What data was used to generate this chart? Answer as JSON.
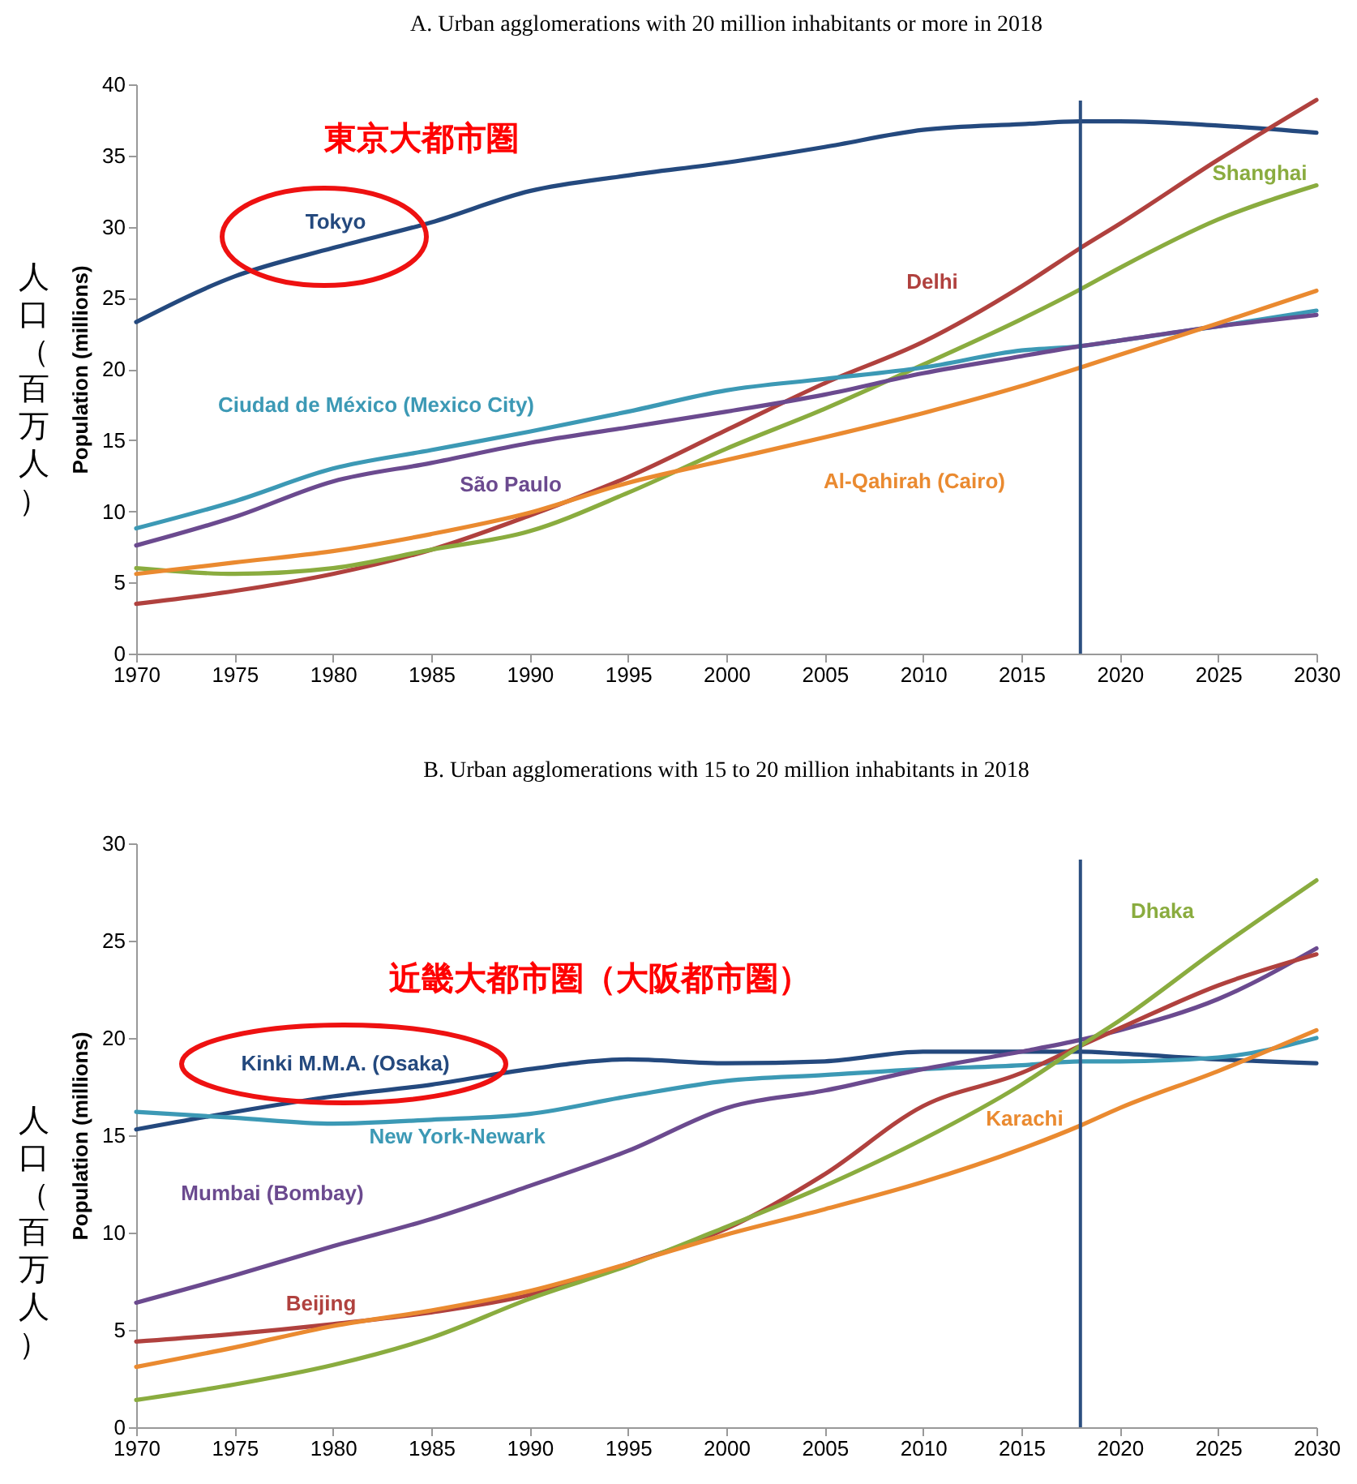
{
  "chart_data": [
    {
      "type": "line",
      "title": "A. Urban agglomerations with 20 million inhabitants or more in 2018",
      "ylabel": "Population (millions)",
      "annotations": [
        "東京大都市圏",
        "人口（百万人）"
      ],
      "x": [
        1970,
        1975,
        1980,
        1985,
        1990,
        1995,
        2000,
        2005,
        2010,
        2015,
        2018,
        2020,
        2025,
        2030
      ],
      "series": [
        {
          "name": "Tokyo",
          "color": "#24497e",
          "values": [
            23.3,
            26.5,
            28.5,
            30.3,
            32.5,
            33.6,
            34.5,
            35.6,
            36.8,
            37.2,
            37.4,
            37.4,
            37.1,
            36.6
          ]
        },
        {
          "name": "Delhi",
          "color": "#b0413e",
          "values": [
            3.5,
            4.4,
            5.6,
            7.3,
            9.7,
            12.4,
            15.7,
            19.0,
            21.9,
            25.8,
            28.5,
            30.2,
            34.7,
            38.9
          ]
        },
        {
          "name": "Shanghai",
          "color": "#8aac3f",
          "values": [
            6.0,
            5.6,
            6.0,
            7.3,
            8.6,
            11.3,
            14.4,
            17.2,
            20.3,
            23.5,
            25.6,
            27.1,
            30.5,
            32.9
          ]
        },
        {
          "name": "Ciudad de México (Mexico City)",
          "color": "#3c99b5",
          "values": [
            8.8,
            10.7,
            13.0,
            14.3,
            15.6,
            17.0,
            18.5,
            19.3,
            20.1,
            21.3,
            21.6,
            22.0,
            23.0,
            24.1
          ]
        },
        {
          "name": "São Paulo",
          "color": "#6b4a8f",
          "values": [
            7.6,
            9.6,
            12.1,
            13.4,
            14.8,
            15.9,
            17.0,
            18.2,
            19.7,
            20.9,
            21.6,
            22.0,
            23.0,
            23.8
          ]
        },
        {
          "name": "Al-Qahirah (Cairo)",
          "color": "#ea8a30",
          "values": [
            5.6,
            6.4,
            7.2,
            8.4,
            9.9,
            12.0,
            13.6,
            15.2,
            16.9,
            18.8,
            20.1,
            21.0,
            23.2,
            25.5
          ]
        }
      ],
      "xlim": [
        1970,
        2030
      ],
      "xticks": [
        1970,
        1975,
        1980,
        1985,
        1990,
        1995,
        2000,
        2005,
        2010,
        2015,
        2020,
        2025,
        2030
      ],
      "ylim": [
        0,
        40
      ],
      "yticks": [
        0,
        5,
        10,
        15,
        20,
        25,
        30,
        35,
        40
      ],
      "ref_lines": [
        {
          "axis": "x",
          "value": 2018,
          "color": "#2c4f80"
        }
      ],
      "legend": false,
      "line_style": "solid"
    },
    {
      "type": "line",
      "title": "B. Urban agglomerations with 15 to 20 million inhabitants in 2018",
      "ylabel": "Population (millions)",
      "annotations": [
        "近畿大都市圏（大阪都市圏）",
        "人口（百万人）"
      ],
      "x": [
        1970,
        1975,
        1980,
        1985,
        1990,
        1995,
        2000,
        2005,
        2010,
        2015,
        2018,
        2020,
        2025,
        2030
      ],
      "series": [
        {
          "name": "Kinki M.M.A. (Osaka)",
          "color": "#24497e",
          "values": [
            15.3,
            16.2,
            17.0,
            17.6,
            18.4,
            18.9,
            18.7,
            18.8,
            19.3,
            19.3,
            19.3,
            19.2,
            18.9,
            18.7
          ]
        },
        {
          "name": "New York-Newark",
          "color": "#3c99b5",
          "values": [
            16.2,
            15.9,
            15.6,
            15.8,
            16.1,
            17.0,
            17.8,
            18.1,
            18.4,
            18.6,
            18.8,
            18.8,
            19.0,
            20.0
          ]
        },
        {
          "name": "Mumbai (Bombay)",
          "color": "#6b4a8f",
          "values": [
            6.4,
            7.8,
            9.3,
            10.7,
            12.4,
            14.2,
            16.4,
            17.3,
            18.4,
            19.3,
            19.9,
            20.4,
            22.0,
            24.6
          ]
        },
        {
          "name": "Beijing",
          "color": "#b0413e",
          "values": [
            4.4,
            4.8,
            5.3,
            5.9,
            6.8,
            8.4,
            10.2,
            13.0,
            16.5,
            18.2,
            19.6,
            20.5,
            22.7,
            24.3
          ]
        },
        {
          "name": "Dhaka",
          "color": "#8aac3f",
          "values": [
            1.4,
            2.2,
            3.2,
            4.6,
            6.6,
            8.3,
            10.3,
            12.4,
            14.8,
            17.6,
            19.6,
            20.9,
            24.6,
            28.1
          ]
        },
        {
          "name": "Karachi",
          "color": "#ea8a30",
          "values": [
            3.1,
            4.1,
            5.2,
            6.0,
            7.0,
            8.4,
            9.9,
            11.2,
            12.6,
            14.3,
            15.5,
            16.4,
            18.3,
            20.4
          ]
        }
      ],
      "xlim": [
        1970,
        2030
      ],
      "xticks": [
        1970,
        1975,
        1980,
        1985,
        1990,
        1995,
        2000,
        2005,
        2010,
        2015,
        2020,
        2025,
        2030
      ],
      "ylim": [
        0,
        30
      ],
      "yticks": [
        0,
        5,
        10,
        15,
        20,
        25,
        30
      ],
      "ref_lines": [
        {
          "axis": "x",
          "value": 2018,
          "color": "#2c4f80"
        }
      ],
      "legend": false,
      "line_style": "solid"
    }
  ]
}
